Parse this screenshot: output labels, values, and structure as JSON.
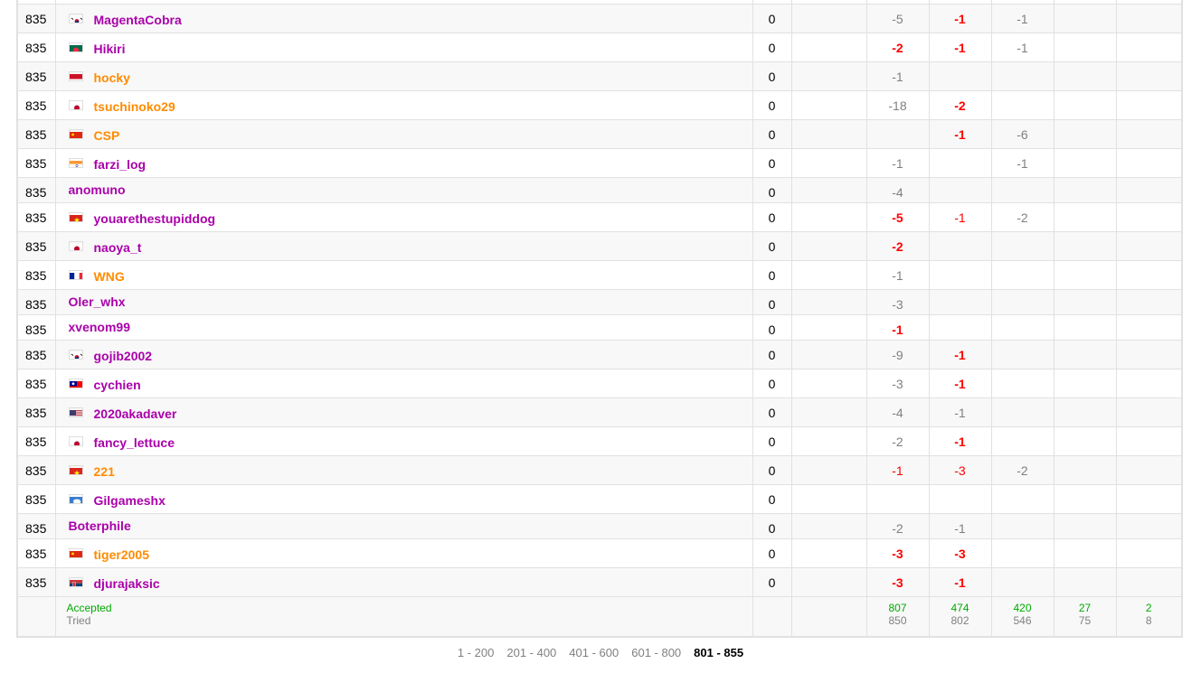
{
  "rows": [
    {
      "rank": "835",
      "flag": "kr",
      "name": "MagentaCobra",
      "color": "violet",
      "points": "0",
      "cells": [
        "",
        {
          "v": "-5",
          "s": "g"
        },
        {
          "v": "-1",
          "s": "rb"
        },
        {
          "v": "-1",
          "s": "g"
        },
        "",
        ""
      ]
    },
    {
      "rank": "835",
      "flag": "bd",
      "name": "Hikiri",
      "color": "violet",
      "points": "0",
      "cells": [
        "",
        {
          "v": "-2",
          "s": "rb"
        },
        {
          "v": "-1",
          "s": "rb"
        },
        {
          "v": "-1",
          "s": "g"
        },
        "",
        ""
      ]
    },
    {
      "rank": "835",
      "flag": "id",
      "name": "hocky",
      "color": "orange",
      "points": "0",
      "cells": [
        "",
        {
          "v": "-1",
          "s": "g"
        },
        "",
        "",
        "",
        ""
      ]
    },
    {
      "rank": "835",
      "flag": "jp",
      "name": "tsuchinoko29",
      "color": "orange",
      "points": "0",
      "cells": [
        "",
        {
          "v": "-18",
          "s": "g"
        },
        {
          "v": "-2",
          "s": "rb"
        },
        "",
        "",
        ""
      ]
    },
    {
      "rank": "835",
      "flag": "cn",
      "name": "CSP",
      "color": "orange",
      "points": "0",
      "cells": [
        "",
        "",
        {
          "v": "-1",
          "s": "rb"
        },
        {
          "v": "-6",
          "s": "g"
        },
        "",
        ""
      ]
    },
    {
      "rank": "835",
      "flag": "in",
      "name": "farzi_log",
      "color": "violet",
      "points": "0",
      "cells": [
        "",
        {
          "v": "-1",
          "s": "g"
        },
        "",
        {
          "v": "-1",
          "s": "g"
        },
        "",
        ""
      ]
    },
    {
      "rank": "835",
      "flag": "",
      "name": "anomuno",
      "color": "violet",
      "points": "0",
      "cells": [
        "",
        {
          "v": "-4",
          "s": "g"
        },
        "",
        "",
        "",
        ""
      ]
    },
    {
      "rank": "835",
      "flag": "vn",
      "name": "youarethestupiddog",
      "color": "violet",
      "points": "0",
      "cells": [
        "",
        {
          "v": "-5",
          "s": "rb"
        },
        {
          "v": "-1",
          "s": "r"
        },
        {
          "v": "-2",
          "s": "g"
        },
        "",
        ""
      ]
    },
    {
      "rank": "835",
      "flag": "jp",
      "name": "naoya_t",
      "color": "violet",
      "points": "0",
      "cells": [
        "",
        {
          "v": "-2",
          "s": "rb"
        },
        "",
        "",
        "",
        ""
      ]
    },
    {
      "rank": "835",
      "flag": "fr",
      "name": "WNG",
      "color": "orange",
      "points": "0",
      "cells": [
        "",
        {
          "v": "-1",
          "s": "g"
        },
        "",
        "",
        "",
        ""
      ]
    },
    {
      "rank": "835",
      "flag": "",
      "name": "Oler_whx",
      "color": "violet",
      "points": "0",
      "cells": [
        "",
        {
          "v": "-3",
          "s": "g"
        },
        "",
        "",
        "",
        ""
      ]
    },
    {
      "rank": "835",
      "flag": "",
      "name": "xvenom99",
      "color": "violet",
      "points": "0",
      "cells": [
        "",
        {
          "v": "-1",
          "s": "rb"
        },
        "",
        "",
        "",
        ""
      ]
    },
    {
      "rank": "835",
      "flag": "kr",
      "name": "gojib2002",
      "color": "violet",
      "points": "0",
      "cells": [
        "",
        {
          "v": "-9",
          "s": "g"
        },
        {
          "v": "-1",
          "s": "rb"
        },
        "",
        "",
        ""
      ]
    },
    {
      "rank": "835",
      "flag": "tw",
      "name": "cychien",
      "color": "violet",
      "points": "0",
      "cells": [
        "",
        {
          "v": "-3",
          "s": "g"
        },
        {
          "v": "-1",
          "s": "rb"
        },
        "",
        "",
        ""
      ]
    },
    {
      "rank": "835",
      "flag": "us",
      "name": "2020akadaver",
      "color": "violet",
      "points": "0",
      "cells": [
        "",
        {
          "v": "-4",
          "s": "g"
        },
        {
          "v": "-1",
          "s": "g"
        },
        "",
        "",
        ""
      ]
    },
    {
      "rank": "835",
      "flag": "jp",
      "name": "fancy_lettuce",
      "color": "violet",
      "points": "0",
      "cells": [
        "",
        {
          "v": "-2",
          "s": "g"
        },
        {
          "v": "-1",
          "s": "rb"
        },
        "",
        "",
        ""
      ]
    },
    {
      "rank": "835",
      "flag": "vn",
      "name": "221",
      "color": "orange",
      "points": "0",
      "cells": [
        "",
        {
          "v": "-1",
          "s": "r"
        },
        {
          "v": "-3",
          "s": "r"
        },
        {
          "v": "-2",
          "s": "g"
        },
        "",
        ""
      ]
    },
    {
      "rank": "835",
      "flag": "aq",
      "name": "Gilgameshx",
      "color": "violet",
      "points": "0",
      "cells": [
        "",
        "",
        "",
        "",
        "",
        ""
      ]
    },
    {
      "rank": "835",
      "flag": "",
      "name": "Boterphile",
      "color": "violet",
      "points": "0",
      "cells": [
        "",
        {
          "v": "-2",
          "s": "g"
        },
        {
          "v": "-1",
          "s": "g"
        },
        "",
        "",
        ""
      ]
    },
    {
      "rank": "835",
      "flag": "cn",
      "name": "tiger2005",
      "color": "orange",
      "points": "0",
      "cells": [
        "",
        {
          "v": "-3",
          "s": "rb"
        },
        {
          "v": "-3",
          "s": "rb"
        },
        "",
        "",
        ""
      ]
    },
    {
      "rank": "835",
      "flag": "rs",
      "name": "djurajaksic",
      "color": "violet",
      "points": "0",
      "cells": [
        "",
        {
          "v": "-3",
          "s": "rb"
        },
        {
          "v": "-1",
          "s": "rb"
        },
        "",
        "",
        ""
      ]
    }
  ],
  "footer": {
    "accepted_label": "Accepted",
    "tried_label": "Tried",
    "stats": [
      {
        "accepted": "807",
        "tried": "850"
      },
      {
        "accepted": "474",
        "tried": "802"
      },
      {
        "accepted": "420",
        "tried": "546"
      },
      {
        "accepted": "27",
        "tried": "75"
      },
      {
        "accepted": "2",
        "tried": "8"
      }
    ]
  },
  "pager": {
    "pages": [
      "1 - 200",
      "201 - 400",
      "401 - 600",
      "601 - 800",
      "801 - 855"
    ],
    "current": "801 - 855"
  },
  "colors": {
    "violet": "#aa00aa",
    "orange": "#ff8c00",
    "accepted": "#00aa00",
    "wrong": "#ff0000"
  }
}
